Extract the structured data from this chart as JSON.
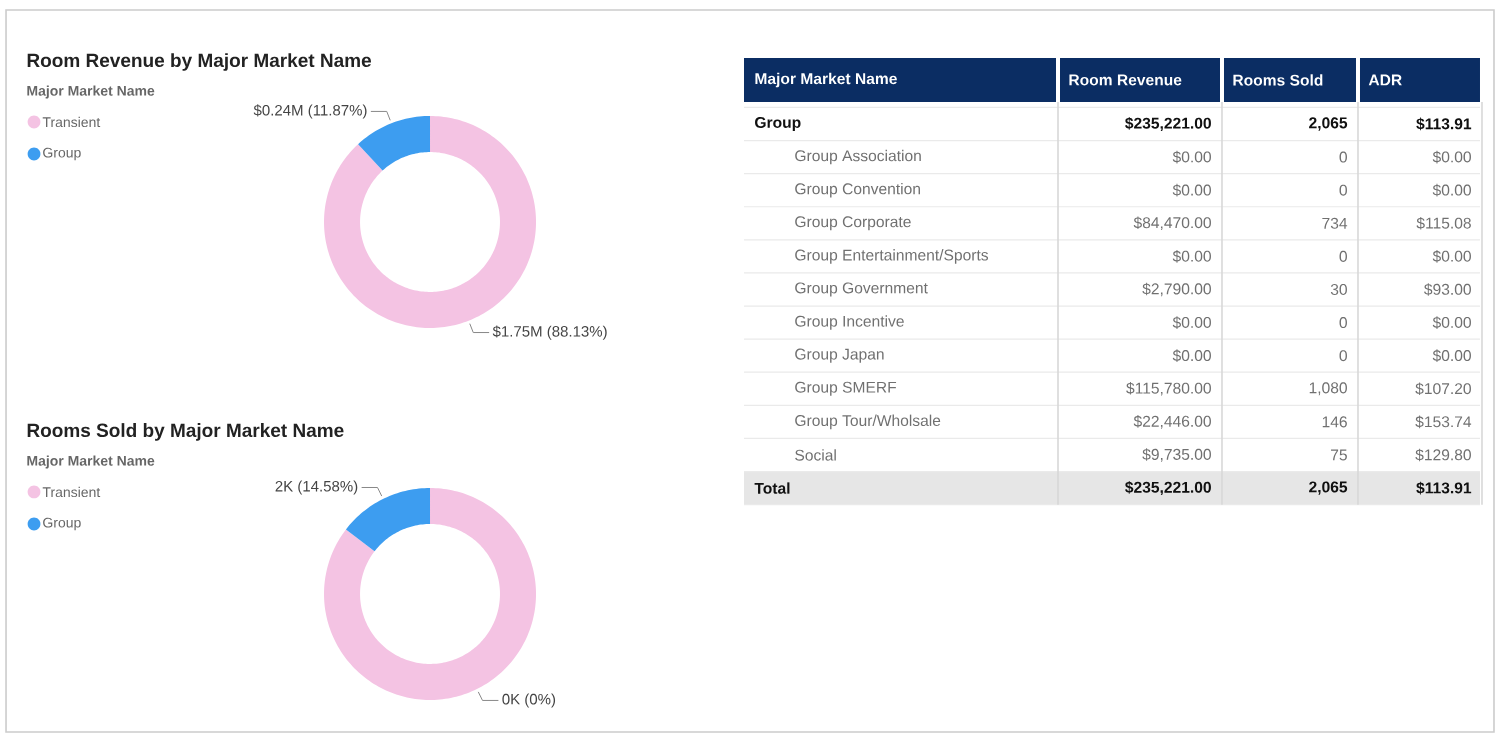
{
  "chart_data": [
    {
      "type": "donut",
      "title": "Room Revenue by Major Market Name",
      "legend_title": "Major Market Name",
      "legend": "top left",
      "categories": [
        "Transient",
        "Group"
      ],
      "values": [
        88.13,
        11.87
      ],
      "colors": [
        "#f4c3e3",
        "#3d9df0"
      ],
      "value_labels": [
        "$1.75M (88.13%)",
        "$0.24M (11.87%)"
      ]
    },
    {
      "type": "donut",
      "title": "Rooms Sold by Major Market Name",
      "legend_title": "Major Market Name",
      "legend": "top left",
      "categories": [
        "Transient",
        "Group"
      ],
      "values": [
        85.42,
        14.58
      ],
      "colors": [
        "#f4c3e3",
        "#3d9df0"
      ],
      "value_labels": [
        "0K (0%)",
        "2K (14.58%)"
      ]
    },
    {
      "type": "other",
      "ylabel": "Major Market Name",
      "categories": [
        "Group",
        "Group Association",
        "Group Convention",
        "Group Corporate",
        "Group Entertainment/Sports",
        "Group Government",
        "Group Incentive",
        "Group Japan",
        "Group SMERF",
        "Group Tour/Wholsale",
        "Social",
        "Total"
      ],
      "annotations": [
        "Room Revenue",
        "Rooms Sold",
        "ADR",
        "$235,221.00",
        "2,065",
        "$113.91",
        "$0.00",
        "0",
        "$0.00",
        "$0.00",
        "0",
        "$0.00",
        "$84,470.00",
        "734",
        "$115.08",
        "$0.00",
        "0",
        "$0.00",
        "$2,790.00",
        "30",
        "$93.00",
        "$0.00",
        "0",
        "$0.00",
        "$0.00",
        "0",
        "$0.00",
        "$115,780.00",
        "1,080",
        "$107.20",
        "$22,446.00",
        "146",
        "$153.74",
        "$9,735.00",
        "75",
        "$129.80",
        "$235,221.00",
        "2,065",
        "$113.91"
      ]
    }
  ]
}
